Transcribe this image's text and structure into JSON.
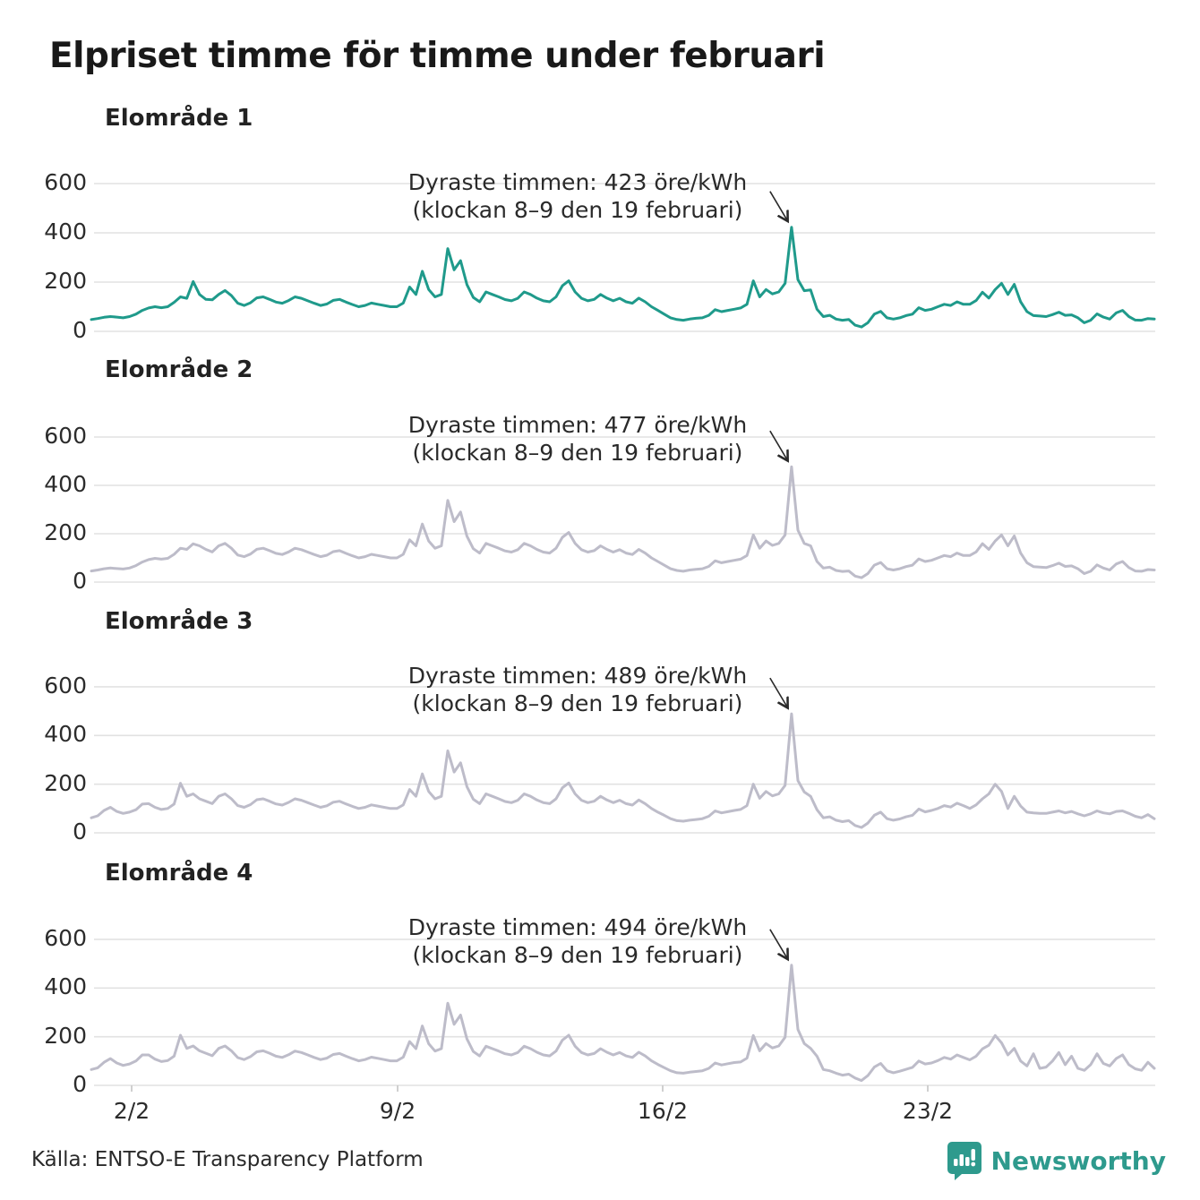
{
  "title": "Elpriset timme för timme under februari",
  "unit": "öre/kWh",
  "month": "februari",
  "colors": {
    "se1_line": "#1f9a8b",
    "other_lines": "#bdbcc9",
    "grid": "#e2e2e2",
    "axis_text": "#2c2c2c",
    "annotation_text": "#2a2a2a",
    "brand_teal": "#2e9a8d"
  },
  "x_axis": {
    "tick_labels": [
      "2/2",
      "9/2",
      "16/2",
      "23/2"
    ],
    "tick_days": [
      2,
      9,
      16,
      23
    ],
    "range_days": 28
  },
  "y_axis": {
    "tick_labels": [
      "600",
      "400",
      "200",
      "0"
    ],
    "ticks": [
      600,
      400,
      200,
      0
    ],
    "ylim": [
      0,
      650
    ]
  },
  "footer": {
    "source": "Källa: ENTSO-E Transparency Platform",
    "brand": "Newsworthy",
    "logo_icon": "newsworthy-speech-bubble-bar-chart-icon"
  },
  "chart_data": [
    {
      "type": "line",
      "title": "Elområde 1",
      "unit": "öre/kWh",
      "line_color": "#1f9a8b",
      "x_interval_hours": 4,
      "x_tick_labels": [
        "2/2",
        "9/2",
        "16/2",
        "23/2"
      ],
      "y_ticks": [
        0,
        200,
        400,
        600
      ],
      "annotation": {
        "line1": "Dyraste timmen: 423 öre/kWh",
        "line2": "(klockan 8–9 den 19 februari)",
        "peak_value": 423,
        "peak_time": "klockan 8–9 den 19 februari"
      },
      "values": [
        48,
        52,
        57,
        60,
        58,
        55,
        60,
        70,
        85,
        95,
        100,
        96,
        100,
        118,
        140,
        134,
        202,
        150,
        130,
        128,
        150,
        166,
        145,
        114,
        105,
        116,
        136,
        140,
        130,
        119,
        114,
        125,
        140,
        134,
        124,
        114,
        105,
        111,
        126,
        130,
        119,
        109,
        100,
        105,
        115,
        110,
        105,
        100,
        100,
        115,
        180,
        150,
        244,
        170,
        140,
        150,
        336,
        250,
        287,
        190,
        138,
        120,
        160,
        150,
        140,
        129,
        124,
        134,
        160,
        150,
        135,
        124,
        120,
        140,
        185,
        205,
        160,
        134,
        124,
        130,
        150,
        135,
        124,
        134,
        120,
        114,
        135,
        120,
        100,
        85,
        70,
        55,
        48,
        45,
        50,
        53,
        55,
        65,
        88,
        80,
        85,
        90,
        95,
        110,
        205,
        140,
        170,
        152,
        160,
        195,
        423,
        210,
        165,
        168,
        90,
        60,
        65,
        50,
        45,
        48,
        25,
        18,
        35,
        70,
        81,
        55,
        50,
        55,
        64,
        70,
        96,
        85,
        90,
        100,
        110,
        105,
        120,
        110,
        110,
        125,
        159,
        135,
        170,
        195,
        150,
        191,
        120,
        80,
        64,
        62,
        60,
        68,
        78,
        65,
        67,
        55,
        35,
        45,
        71,
        58,
        50,
        75,
        85,
        60,
        46,
        45,
        52,
        50
      ]
    },
    {
      "type": "line",
      "title": "Elområde 2",
      "unit": "öre/kWh",
      "line_color": "#bdbcc9",
      "x_interval_hours": 4,
      "x_tick_labels": [
        "2/2",
        "9/2",
        "16/2",
        "23/2"
      ],
      "y_ticks": [
        0,
        200,
        400,
        600
      ],
      "annotation": {
        "line1": "Dyraste timmen: 477 öre/kWh",
        "line2": "(klockan 8–9 den 19 februari)",
        "peak_value": 477,
        "peak_time": "klockan 8–9 den 19 februari"
      },
      "values": [
        46,
        50,
        55,
        58,
        56,
        54,
        58,
        68,
        83,
        93,
        98,
        95,
        98,
        115,
        140,
        135,
        158,
        150,
        135,
        125,
        150,
        160,
        140,
        112,
        105,
        116,
        136,
        140,
        130,
        119,
        114,
        125,
        140,
        134,
        124,
        114,
        105,
        111,
        126,
        130,
        119,
        109,
        100,
        105,
        115,
        110,
        105,
        100,
        100,
        115,
        175,
        150,
        240,
        170,
        140,
        150,
        338,
        250,
        290,
        190,
        138,
        120,
        160,
        150,
        140,
        129,
        124,
        134,
        160,
        150,
        135,
        124,
        120,
        140,
        185,
        205,
        160,
        134,
        124,
        130,
        150,
        135,
        124,
        134,
        120,
        114,
        135,
        120,
        100,
        85,
        70,
        55,
        48,
        45,
        50,
        53,
        55,
        65,
        88,
        80,
        85,
        90,
        95,
        110,
        195,
        140,
        170,
        152,
        160,
        195,
        477,
        215,
        160,
        150,
        85,
        58,
        62,
        48,
        44,
        46,
        25,
        18,
        35,
        70,
        81,
        55,
        50,
        55,
        64,
        70,
        96,
        85,
        90,
        100,
        110,
        105,
        120,
        110,
        110,
        125,
        159,
        135,
        170,
        195,
        150,
        191,
        120,
        80,
        64,
        62,
        60,
        68,
        78,
        65,
        67,
        55,
        35,
        45,
        71,
        58,
        50,
        75,
        85,
        60,
        46,
        45,
        52,
        50
      ]
    },
    {
      "type": "line",
      "title": "Elområde 3",
      "unit": "öre/kWh",
      "line_color": "#bdbcc9",
      "x_interval_hours": 4,
      "x_tick_labels": [
        "2/2",
        "9/2",
        "16/2",
        "23/2"
      ],
      "y_ticks": [
        0,
        200,
        400,
        600
      ],
      "annotation": {
        "line1": "Dyraste timmen: 489 öre/kWh",
        "line2": "(klockan 8–9 den 19 februari)",
        "peak_value": 489,
        "peak_time": "klockan 8–9 den 19 februari"
      },
      "values": [
        62,
        70,
        92,
        105,
        88,
        80,
        85,
        95,
        118,
        120,
        105,
        96,
        100,
        118,
        204,
        150,
        160,
        140,
        130,
        120,
        150,
        160,
        140,
        112,
        105,
        116,
        136,
        140,
        130,
        119,
        114,
        125,
        140,
        134,
        124,
        114,
        105,
        111,
        126,
        130,
        119,
        109,
        100,
        105,
        115,
        110,
        105,
        100,
        100,
        115,
        178,
        150,
        242,
        170,
        140,
        150,
        337,
        250,
        288,
        190,
        138,
        120,
        160,
        150,
        140,
        129,
        124,
        134,
        160,
        150,
        135,
        124,
        120,
        140,
        185,
        205,
        160,
        134,
        124,
        130,
        150,
        135,
        124,
        134,
        120,
        114,
        135,
        120,
        100,
        85,
        72,
        58,
        50,
        48,
        52,
        55,
        58,
        68,
        90,
        82,
        87,
        92,
        96,
        112,
        200,
        142,
        170,
        152,
        160,
        195,
        489,
        215,
        168,
        150,
        95,
        62,
        66,
        52,
        46,
        50,
        30,
        22,
        40,
        72,
        85,
        58,
        52,
        57,
        66,
        72,
        98,
        86,
        92,
        100,
        112,
        106,
        122,
        112,
        100,
        115,
        140,
        160,
        200,
        170,
        100,
        150,
        110,
        85,
        82,
        80,
        80,
        85,
        90,
        82,
        88,
        78,
        70,
        78,
        90,
        82,
        78,
        88,
        90,
        80,
        68,
        62,
        75,
        58
      ]
    },
    {
      "type": "line",
      "title": "Elområde 4",
      "unit": "öre/kWh",
      "line_color": "#bdbcc9",
      "x_interval_hours": 4,
      "x_tick_labels": [
        "2/2",
        "9/2",
        "16/2",
        "23/2"
      ],
      "y_ticks": [
        0,
        200,
        400,
        600
      ],
      "annotation": {
        "line1": "Dyraste timmen: 494 öre/kWh",
        "line2": "(klockan 8–9 den 19 februari)",
        "peak_value": 494,
        "peak_time": "klockan 8–9 den 19 februari"
      },
      "values": [
        65,
        72,
        95,
        110,
        92,
        82,
        88,
        100,
        125,
        125,
        108,
        98,
        102,
        120,
        206,
        152,
        162,
        142,
        132,
        122,
        152,
        162,
        142,
        114,
        106,
        118,
        138,
        142,
        132,
        120,
        115,
        126,
        141,
        135,
        125,
        115,
        106,
        112,
        127,
        131,
        120,
        110,
        101,
        106,
        116,
        111,
        106,
        101,
        101,
        116,
        180,
        151,
        244,
        171,
        141,
        151,
        338,
        251,
        289,
        191,
        139,
        121,
        161,
        151,
        141,
        130,
        125,
        135,
        161,
        151,
        136,
        125,
        121,
        141,
        186,
        206,
        161,
        135,
        125,
        131,
        151,
        136,
        125,
        135,
        121,
        115,
        136,
        121,
        101,
        86,
        73,
        60,
        52,
        50,
        54,
        57,
        60,
        70,
        92,
        84,
        89,
        94,
        96,
        112,
        205,
        142,
        172,
        154,
        162,
        198,
        494,
        230,
        172,
        152,
        120,
        65,
        60,
        50,
        42,
        46,
        30,
        20,
        40,
        75,
        90,
        60,
        52,
        58,
        66,
        74,
        100,
        88,
        92,
        102,
        115,
        108,
        125,
        115,
        105,
        120,
        150,
        165,
        205,
        175,
        125,
        152,
        100,
        80,
        130,
        70,
        75,
        100,
        135,
        85,
        120,
        70,
        62,
        85,
        130,
        90,
        80,
        110,
        125,
        85,
        68,
        62,
        95,
        70
      ]
    }
  ]
}
